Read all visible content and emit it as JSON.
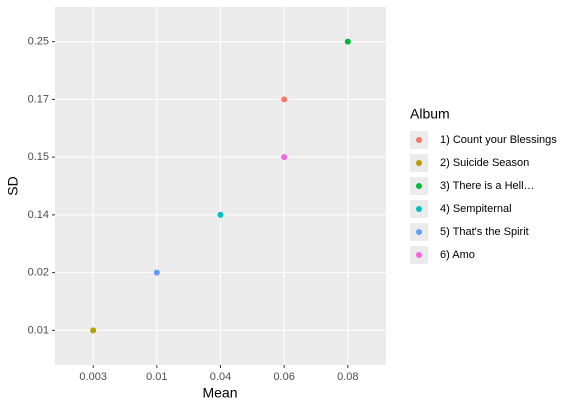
{
  "chart_data": {
    "type": "scatter",
    "x_label": "Mean",
    "y_label": "SD",
    "legend_title": "Album",
    "xscale": "discrete",
    "yscale": "discrete",
    "xticks": [
      0.003,
      0.01,
      0.04,
      0.06,
      0.08
    ],
    "yticks": [
      0.01,
      0.02,
      0.14,
      0.15,
      0.17,
      0.25
    ],
    "grid": true,
    "legend": "right",
    "series": [
      {
        "name": "1) Count your Blessings",
        "color": "#F8766D",
        "x": [
          0.06
        ],
        "values": [
          0.17
        ]
      },
      {
        "name": "2) Suicide Season",
        "color": "#B79F00",
        "x": [
          0.003
        ],
        "values": [
          0.01
        ]
      },
      {
        "name": "3) There is a Hell…",
        "color": "#00BA38",
        "x": [
          0.08
        ],
        "values": [
          0.25
        ]
      },
      {
        "name": "4) Sempiternal",
        "color": "#00BFC4",
        "x": [
          0.04
        ],
        "values": [
          0.14
        ]
      },
      {
        "name": "5) That's the Spirit",
        "color": "#619CFF",
        "x": [
          0.01
        ],
        "values": [
          0.02
        ]
      },
      {
        "name": "6) Amo",
        "color": "#F564E3",
        "x": [
          0.06
        ],
        "values": [
          0.15
        ]
      }
    ]
  }
}
